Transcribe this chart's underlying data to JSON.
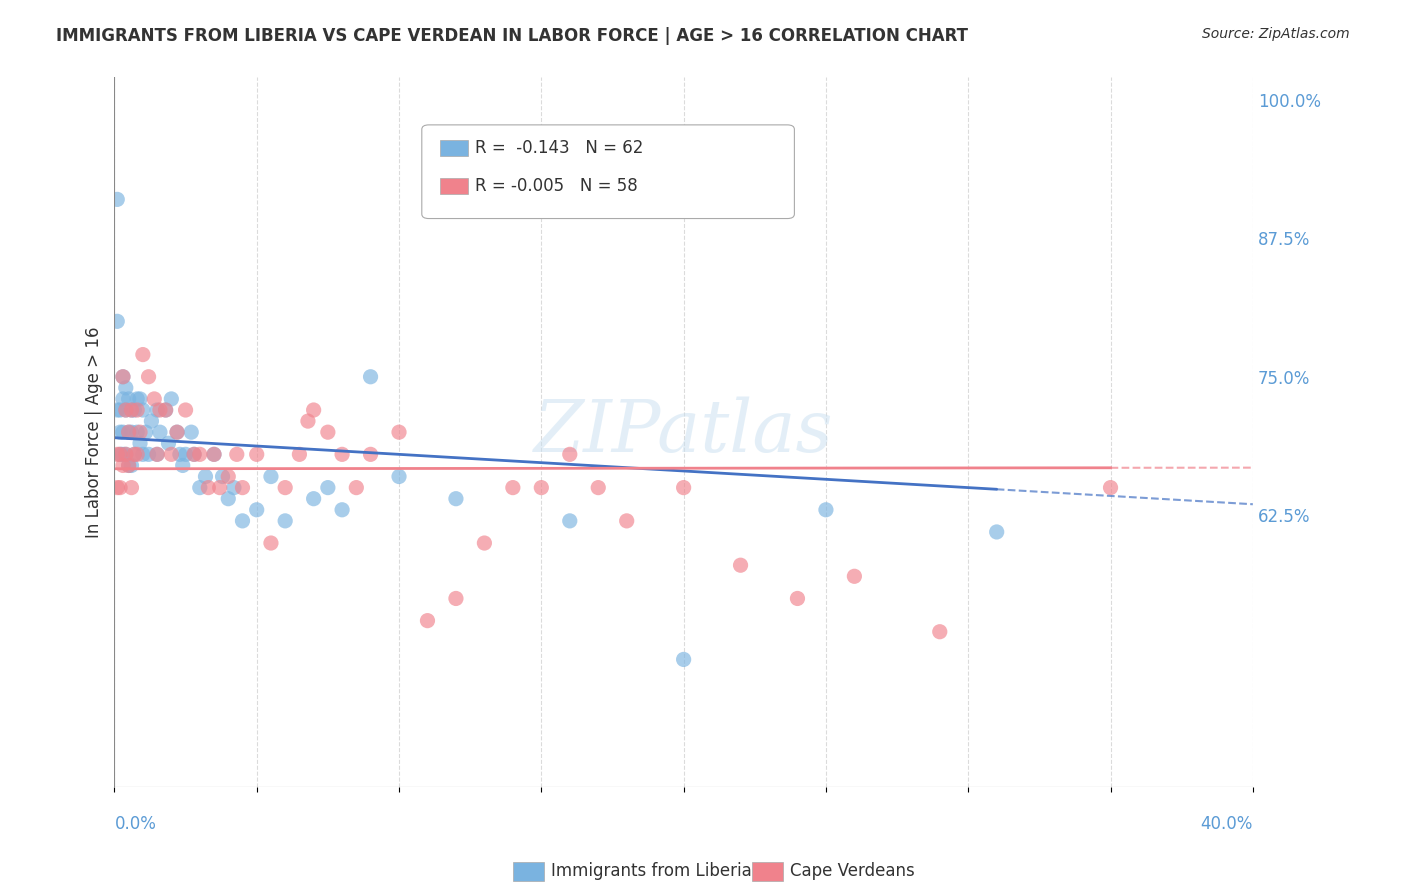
{
  "title": "IMMIGRANTS FROM LIBERIA VS CAPE VERDEAN IN LABOR FORCE | AGE > 16 CORRELATION CHART",
  "source": "Source: ZipAtlas.com",
  "ylabel": "In Labor Force | Age > 16",
  "right_yticks": [
    1.0,
    0.875,
    0.75,
    0.625
  ],
  "right_ytick_labels": [
    "100.0%",
    "87.5%",
    "75.0%",
    "62.5%"
  ],
  "xmin": 0.0,
  "xmax": 0.4,
  "ymin": 0.38,
  "ymax": 1.02,
  "liberia_legend": "Immigrants from Liberia",
  "cv_legend": "Cape Verdeans",
  "blue_color": "#7ab3e0",
  "pink_color": "#f0828c",
  "blue_line_color": "#4472c4",
  "pink_line_color": "#f0828c",
  "liberia_x": [
    0.001,
    0.001,
    0.001,
    0.002,
    0.002,
    0.002,
    0.003,
    0.003,
    0.003,
    0.003,
    0.004,
    0.004,
    0.004,
    0.005,
    0.005,
    0.005,
    0.006,
    0.006,
    0.006,
    0.007,
    0.007,
    0.008,
    0.008,
    0.009,
    0.009,
    0.01,
    0.01,
    0.011,
    0.012,
    0.013,
    0.015,
    0.015,
    0.016,
    0.018,
    0.019,
    0.02,
    0.022,
    0.023,
    0.024,
    0.025,
    0.027,
    0.028,
    0.03,
    0.032,
    0.035,
    0.038,
    0.04,
    0.042,
    0.045,
    0.05,
    0.055,
    0.06,
    0.07,
    0.075,
    0.08,
    0.09,
    0.1,
    0.12,
    0.16,
    0.2,
    0.25,
    0.31
  ],
  "liberia_y": [
    0.91,
    0.8,
    0.72,
    0.72,
    0.7,
    0.68,
    0.75,
    0.73,
    0.7,
    0.68,
    0.74,
    0.72,
    0.68,
    0.73,
    0.7,
    0.67,
    0.72,
    0.7,
    0.67,
    0.72,
    0.68,
    0.73,
    0.7,
    0.73,
    0.69,
    0.72,
    0.68,
    0.7,
    0.68,
    0.71,
    0.72,
    0.68,
    0.7,
    0.72,
    0.69,
    0.73,
    0.7,
    0.68,
    0.67,
    0.68,
    0.7,
    0.68,
    0.65,
    0.66,
    0.68,
    0.66,
    0.64,
    0.65,
    0.62,
    0.63,
    0.66,
    0.62,
    0.64,
    0.65,
    0.63,
    0.75,
    0.66,
    0.64,
    0.62,
    0.495,
    0.63,
    0.61
  ],
  "cv_x": [
    0.001,
    0.001,
    0.002,
    0.002,
    0.003,
    0.003,
    0.004,
    0.004,
    0.005,
    0.005,
    0.006,
    0.006,
    0.007,
    0.008,
    0.008,
    0.009,
    0.01,
    0.012,
    0.014,
    0.015,
    0.016,
    0.018,
    0.02,
    0.022,
    0.025,
    0.028,
    0.03,
    0.033,
    0.035,
    0.037,
    0.04,
    0.043,
    0.045,
    0.05,
    0.055,
    0.06,
    0.065,
    0.068,
    0.07,
    0.075,
    0.08,
    0.085,
    0.09,
    0.1,
    0.11,
    0.12,
    0.13,
    0.14,
    0.15,
    0.16,
    0.17,
    0.18,
    0.2,
    0.22,
    0.24,
    0.26,
    0.29,
    0.35
  ],
  "cv_y": [
    0.68,
    0.65,
    0.68,
    0.65,
    0.75,
    0.67,
    0.72,
    0.68,
    0.7,
    0.67,
    0.72,
    0.65,
    0.68,
    0.72,
    0.68,
    0.7,
    0.77,
    0.75,
    0.73,
    0.68,
    0.72,
    0.72,
    0.68,
    0.7,
    0.72,
    0.68,
    0.68,
    0.65,
    0.68,
    0.65,
    0.66,
    0.68,
    0.65,
    0.68,
    0.6,
    0.65,
    0.68,
    0.71,
    0.72,
    0.7,
    0.68,
    0.65,
    0.68,
    0.7,
    0.53,
    0.55,
    0.6,
    0.65,
    0.65,
    0.68,
    0.65,
    0.62,
    0.65,
    0.58,
    0.55,
    0.57,
    0.52,
    0.65
  ],
  "grid_color": "#cccccc",
  "background_color": "#ffffff"
}
